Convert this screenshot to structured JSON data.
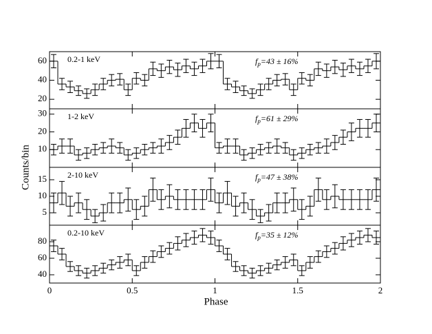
{
  "chart_data": {
    "type": "histogram",
    "xlabel": "Phase",
    "ylabel": "Counts/bin",
    "xlim": [
      0,
      2
    ],
    "xticks": [
      0,
      0.5,
      1,
      1.5,
      2
    ],
    "bins": [
      0,
      0.05,
      0.1,
      0.15,
      0.2,
      0.25,
      0.3,
      0.35,
      0.4,
      0.45,
      0.5,
      0.55,
      0.6,
      0.65,
      0.7,
      0.75,
      0.8,
      0.85,
      0.9,
      0.95,
      1,
      1.05,
      1.1,
      1.15,
      1.2,
      1.25,
      1.3,
      1.35,
      1.4,
      1.45,
      1.5,
      1.55,
      1.6,
      1.65,
      1.7,
      1.75,
      1.8,
      1.85,
      1.9,
      1.95,
      2
    ],
    "color": "#000000",
    "panels": [
      {
        "label": "0.2-1 keV",
        "annotation": {
          "symbol": "f",
          "sub": "p",
          "text": "=43 ± 16%"
        },
        "ylim": [
          10,
          70
        ],
        "yticks": [
          20,
          40,
          60
        ],
        "values": [
          60,
          36,
          33,
          29,
          26,
          30,
          36,
          40,
          41,
          30,
          42,
          40,
          52,
          50,
          54,
          51,
          55,
          52,
          55,
          60,
          60,
          36,
          33,
          29,
          26,
          30,
          36,
          40,
          41,
          30,
          42,
          40,
          52,
          50,
          54,
          51,
          55,
          52,
          55,
          60
        ],
        "errors": [
          7,
          6,
          6,
          5,
          5,
          6,
          6,
          6,
          6,
          6,
          6,
          6,
          7,
          7,
          7,
          7,
          7,
          7,
          7,
          8,
          7,
          6,
          6,
          5,
          5,
          6,
          6,
          6,
          6,
          6,
          6,
          6,
          7,
          7,
          7,
          7,
          7,
          7,
          7,
          8
        ]
      },
      {
        "label": "1-2 keV",
        "annotation": {
          "symbol": "f",
          "sub": "p",
          "text": "=61 ± 29%"
        },
        "ylim": [
          0,
          33
        ],
        "yticks": [
          10,
          20,
          30
        ],
        "values": [
          10,
          12,
          12,
          7,
          8,
          10,
          11,
          12,
          11,
          7,
          8,
          10,
          11,
          12,
          14,
          17,
          22,
          25,
          22,
          25,
          11,
          12,
          12,
          7,
          8,
          10,
          11,
          12,
          11,
          7,
          8,
          10,
          11,
          12,
          14,
          17,
          20,
          22,
          22,
          25
        ],
        "errors": [
          3,
          4,
          4,
          3,
          3,
          3,
          3,
          4,
          3,
          3,
          3,
          3,
          3,
          4,
          4,
          4,
          5,
          5,
          5,
          5,
          3,
          4,
          4,
          3,
          3,
          3,
          3,
          4,
          3,
          3,
          3,
          3,
          3,
          4,
          4,
          4,
          5,
          5,
          5,
          5
        ]
      },
      {
        "label": "2-10 keV",
        "annotation": {
          "symbol": "f",
          "sub": "p",
          "text": "=47 ± 38%"
        },
        "ylim": [
          1.25,
          18.75
        ],
        "yticks": [
          5,
          10,
          15
        ],
        "values": [
          8,
          11,
          7,
          8,
          6,
          4,
          5,
          8,
          8,
          9,
          6,
          7,
          12,
          9,
          10,
          9,
          9,
          9,
          9,
          12,
          8,
          11,
          7,
          8,
          6,
          4,
          5,
          8,
          8,
          9,
          6,
          7,
          12,
          9,
          10,
          9,
          9,
          9,
          9,
          12
        ],
        "errors": [
          3,
          3.5,
          3,
          3,
          3,
          2,
          2.5,
          3,
          3,
          3.5,
          3,
          3,
          3.5,
          3,
          3.5,
          3,
          3,
          3,
          3,
          3.5,
          3,
          3.5,
          3,
          3,
          3,
          2,
          2.5,
          3,
          3,
          3.5,
          3,
          3,
          3.5,
          3,
          3.5,
          3,
          3,
          3,
          3,
          3.5
        ]
      },
      {
        "label": "0.2-10 keV",
        "annotation": {
          "symbol": "f",
          "sub": "p",
          "text": "=35 ± 12%"
        },
        "ylim": [
          30,
          100
        ],
        "yticks": [
          40,
          60,
          80
        ],
        "values": [
          75,
          65,
          50,
          45,
          42,
          45,
          48,
          52,
          55,
          58,
          45,
          55,
          62,
          68,
          72,
          78,
          82,
          85,
          88,
          85,
          75,
          65,
          50,
          45,
          42,
          45,
          48,
          52,
          55,
          58,
          45,
          55,
          62,
          68,
          72,
          78,
          82,
          85,
          88,
          85
        ],
        "errors": [
          7,
          7,
          6,
          6,
          6,
          6,
          6,
          6,
          7,
          7,
          6,
          7,
          7,
          7,
          7,
          8,
          8,
          8,
          8,
          8,
          7,
          7,
          6,
          6,
          6,
          6,
          6,
          6,
          7,
          7,
          6,
          7,
          7,
          7,
          7,
          8,
          8,
          8,
          8,
          8
        ]
      }
    ]
  }
}
